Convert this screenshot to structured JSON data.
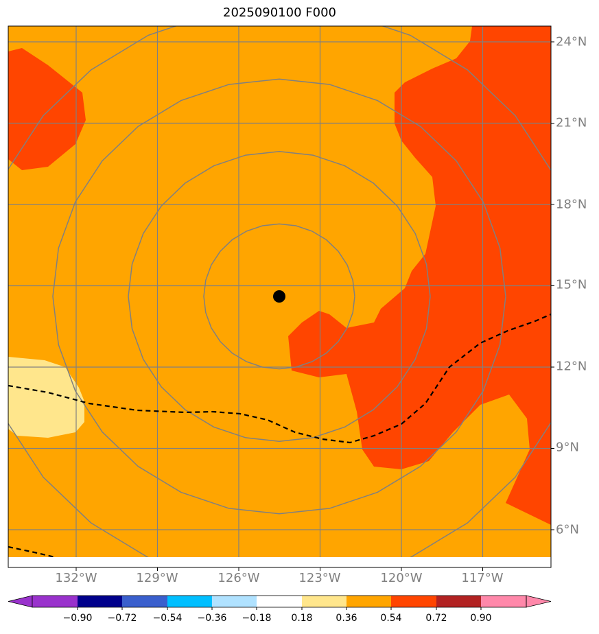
{
  "title": "2025090100 F000",
  "map": {
    "lon_labels": [
      "132°W",
      "129°W",
      "126°W",
      "123°W",
      "120°W",
      "117°W"
    ],
    "lat_labels": [
      "24°N",
      "21°N",
      "18°N",
      "15°N",
      "12°N",
      "9°N",
      "6°N"
    ],
    "lon_values": [
      -132,
      -129,
      -126,
      -123,
      -120,
      -117
    ],
    "lat_values": [
      24,
      21,
      18,
      15,
      12,
      9,
      6
    ],
    "extent": {
      "lon_min": -134.5,
      "lon_max": -114.5,
      "lat_min": 4.7,
      "lat_max": 24.6
    },
    "colors": {
      "field_main": "#ffa500",
      "field_high": "#ff4500",
      "field_low": "#ffe68c",
      "gridline": "#808080",
      "range_ring": "#808080",
      "track": "#000000",
      "center_marker": "#000000"
    },
    "center": {
      "lon": -124.5,
      "lat": 14.6
    }
  },
  "colorbar": {
    "tick_labels": [
      "−0.90",
      "−0.72",
      "−0.54",
      "−0.36",
      "−0.18",
      "0.18",
      "0.36",
      "0.54",
      "0.72",
      "0.90"
    ],
    "colors": [
      "#9932cc",
      "#00008b",
      "#3a5fcd",
      "#00bfff",
      "#b0e2ff",
      "#ffffff",
      "#ffe68c",
      "#ffa500",
      "#ff4500",
      "#b22222",
      "#ff88aa"
    ]
  }
}
